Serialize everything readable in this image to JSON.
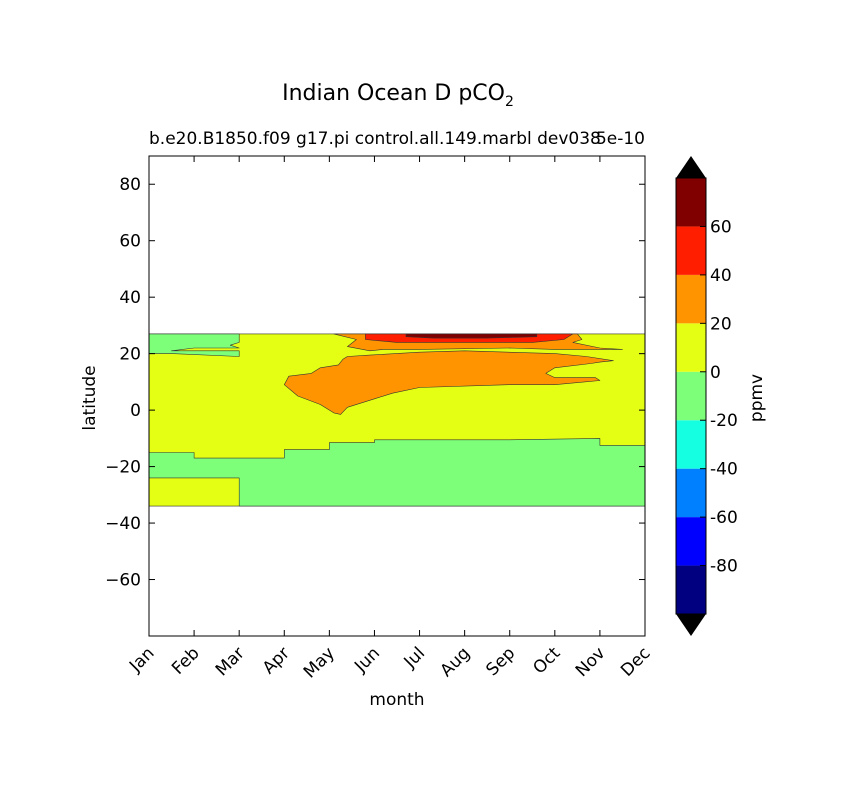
{
  "chart_data": {
    "type": "heatmap",
    "title": "Indian Ocean D pCO",
    "title_subscript": "2",
    "subtitle": "b.e20.B1850.f09 g17.pi control.all.149.marbl dev038",
    "subtitle_right": "5e-10",
    "xlabel": "month",
    "ylabel": "latitude",
    "x_categories": [
      "Jan",
      "Feb",
      "Mar",
      "Apr",
      "May",
      "Jun",
      "Jul",
      "Aug",
      "Sep",
      "Oct",
      "Nov",
      "Dec"
    ],
    "yticks": [
      80,
      60,
      40,
      20,
      0,
      -20,
      -40,
      -60
    ],
    "ylim": [
      -80,
      90
    ],
    "data_lat_range": [
      -34,
      27
    ],
    "colorbar": {
      "label": "ppmv",
      "levels": [
        -100,
        -80,
        -60,
        -40,
        -20,
        0,
        20,
        40,
        60,
        80
      ],
      "tick_labels": [
        "60",
        "40",
        "20",
        "0",
        "-20",
        "-40",
        "-60",
        "-80"
      ],
      "colors": [
        "#000080",
        "#0000ff",
        "#0080ff",
        "#15ffe1",
        "#7dff7a",
        "#e4ff13",
        "#ff9400",
        "#ff1e00",
        "#800000"
      ],
      "extend": "both",
      "under_color": "#000000",
      "over_color": "#000000"
    },
    "regions": [
      {
        "name": "band 0 to 20 ppmv",
        "color": "#e4ff13",
        "points": [
          [
            0,
            27
          ],
          [
            11,
            27
          ],
          [
            11,
            -34
          ],
          [
            0,
            -34
          ]
        ]
      },
      {
        "name": "band -20 to 0 ppmv north",
        "color": "#7dff7a",
        "points": [
          [
            0,
            27
          ],
          [
            2,
            27
          ],
          [
            2,
            24
          ],
          [
            1.8,
            23
          ],
          [
            2,
            22
          ],
          [
            1,
            22
          ],
          [
            0.5,
            21
          ],
          [
            2,
            21
          ],
          [
            2,
            19
          ],
          [
            0.5,
            20
          ],
          [
            0,
            20
          ]
        ]
      },
      {
        "name": "band -20 to 0 ppmv south",
        "color": "#7dff7a",
        "points": [
          [
            0,
            -15
          ],
          [
            1,
            -15
          ],
          [
            1,
            -17
          ],
          [
            3,
            -17
          ],
          [
            3,
            -14
          ],
          [
            4,
            -14
          ],
          [
            4,
            -11.5
          ],
          [
            5,
            -11.5
          ],
          [
            5,
            -10.5
          ],
          [
            8,
            -10.5
          ],
          [
            10,
            -10
          ],
          [
            10,
            -12.5
          ],
          [
            11,
            -12.5
          ],
          [
            11,
            -34
          ],
          [
            2,
            -34
          ],
          [
            2,
            -24
          ],
          [
            0,
            -24
          ]
        ]
      },
      {
        "name": "band 20 to 40 ppmv",
        "color": "#ff9400",
        "points": [
          [
            4.2,
            16
          ],
          [
            3.8,
            15
          ],
          [
            3.6,
            13
          ],
          [
            3.1,
            12
          ],
          [
            3,
            9
          ],
          [
            3.3,
            5
          ],
          [
            3.8,
            2
          ],
          [
            4,
            0
          ],
          [
            4.1,
            -1
          ],
          [
            4.25,
            -1.5
          ],
          [
            4.4,
            1
          ],
          [
            5,
            4
          ],
          [
            5.4,
            6
          ],
          [
            6,
            8
          ],
          [
            8,
            9
          ],
          [
            9,
            9
          ],
          [
            10,
            10.5
          ],
          [
            9.9,
            11.5
          ],
          [
            9,
            11.5
          ],
          [
            8.8,
            13
          ],
          [
            9,
            15
          ],
          [
            9.8,
            16.5
          ],
          [
            10,
            17
          ],
          [
            10.3,
            17.5
          ],
          [
            9.7,
            19
          ],
          [
            9,
            20
          ],
          [
            7,
            21
          ],
          [
            6,
            20.5
          ],
          [
            4.9,
            19.5
          ],
          [
            4.4,
            19
          ],
          [
            4.3,
            18
          ]
        ]
      },
      {
        "name": "band 20 to 40 ppmv north edge",
        "color": "#ff9400",
        "points": [
          [
            4.1,
            27
          ],
          [
            9.5,
            27
          ],
          [
            9.6,
            25
          ],
          [
            9.4,
            24
          ],
          [
            10,
            22
          ],
          [
            10.5,
            21.5
          ],
          [
            9,
            21.5
          ],
          [
            8,
            22
          ],
          [
            6,
            21.5
          ],
          [
            5.2,
            21.5
          ],
          [
            4.9,
            21
          ],
          [
            4.4,
            22.5
          ],
          [
            4.6,
            25
          ]
        ]
      },
      {
        "name": "band 40 to 60 ppmv",
        "color": "#ff1e00",
        "points": [
          [
            4.8,
            27
          ],
          [
            9.4,
            27
          ],
          [
            9.2,
            25
          ],
          [
            8.5,
            24
          ],
          [
            7,
            24
          ],
          [
            5.5,
            24
          ],
          [
            4.8,
            25
          ]
        ]
      },
      {
        "name": "band 60 to 80 ppmv",
        "color": "#800000",
        "points": [
          [
            5.7,
            27
          ],
          [
            8.6,
            27
          ],
          [
            8.6,
            26
          ],
          [
            7.5,
            25.5
          ],
          [
            6.3,
            25.5
          ],
          [
            5.7,
            26
          ]
        ]
      }
    ]
  }
}
